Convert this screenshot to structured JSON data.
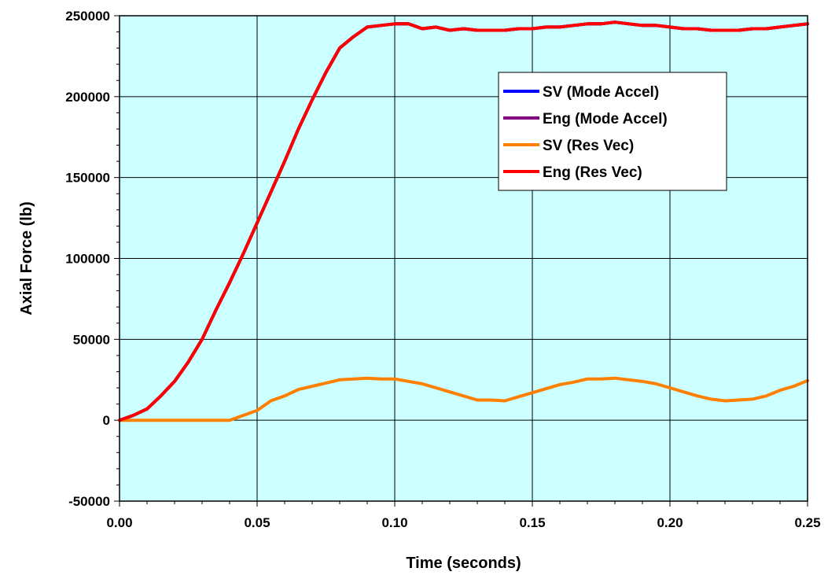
{
  "colors": {
    "plot_background": "#ccffff",
    "grid": "#000000",
    "axis": "#000000"
  },
  "chart_data": {
    "type": "line",
    "title": "",
    "xlabel": "Time (seconds)",
    "ylabel": "Axial Force (lb)",
    "xlim": [
      0.0,
      0.25
    ],
    "ylim": [
      -50000,
      250000
    ],
    "x_ticks": [
      "0.00",
      "0.05",
      "0.10",
      "0.15",
      "0.20",
      "0.25"
    ],
    "x_tick_values": [
      0.0,
      0.05,
      0.1,
      0.15,
      0.2,
      0.25
    ],
    "y_ticks": [
      "-50000",
      "0",
      "50000",
      "100000",
      "150000",
      "200000",
      "250000"
    ],
    "y_tick_values": [
      -50000,
      0,
      50000,
      100000,
      150000,
      200000,
      250000
    ],
    "grid": true,
    "legend_position": "upper-right",
    "series": [
      {
        "name": "SV (Mode Accel)",
        "color": "#0000ff",
        "x": [
          0.0,
          0.005,
          0.01,
          0.015,
          0.02,
          0.025,
          0.03,
          0.035,
          0.04,
          0.045,
          0.05,
          0.055,
          0.06,
          0.065,
          0.07,
          0.075,
          0.08,
          0.085,
          0.09,
          0.095,
          0.1,
          0.105,
          0.11,
          0.115,
          0.12,
          0.125,
          0.13,
          0.135,
          0.14,
          0.145,
          0.15,
          0.155,
          0.16,
          0.165,
          0.17,
          0.175,
          0.18,
          0.185,
          0.19,
          0.195,
          0.2,
          0.205,
          0.21,
          0.215,
          0.22,
          0.225,
          0.23,
          0.235,
          0.24,
          0.245,
          0.25
        ],
        "y": [
          0,
          3000,
          7000,
          15000,
          24000,
          36000,
          50000,
          68000,
          85000,
          103000,
          122000,
          141000,
          160000,
          180000,
          198000,
          215000,
          230000,
          237000,
          243000,
          244000,
          245000,
          245000,
          242000,
          243000,
          241000,
          242000,
          241000,
          241000,
          241000,
          242000,
          242000,
          243000,
          243000,
          244000,
          245000,
          245000,
          246000,
          245000,
          244000,
          244000,
          243000,
          242000,
          242000,
          241000,
          241000,
          241000,
          242000,
          242000,
          243000,
          244000,
          245000
        ]
      },
      {
        "name": "Eng (Mode Accel)",
        "color": "#800080",
        "x": [
          0.0,
          0.005,
          0.01,
          0.015,
          0.02,
          0.025,
          0.03,
          0.035,
          0.04,
          0.045,
          0.05,
          0.055,
          0.06,
          0.065,
          0.07,
          0.075,
          0.08,
          0.085,
          0.09,
          0.095,
          0.1,
          0.105,
          0.11,
          0.115,
          0.12,
          0.125,
          0.13,
          0.135,
          0.14,
          0.145,
          0.15,
          0.155,
          0.16,
          0.165,
          0.17,
          0.175,
          0.18,
          0.185,
          0.19,
          0.195,
          0.2,
          0.205,
          0.21,
          0.215,
          0.22,
          0.225,
          0.23,
          0.235,
          0.24,
          0.245,
          0.25
        ],
        "y": [
          0,
          3000,
          7000,
          15000,
          24000,
          36000,
          50000,
          68000,
          85000,
          103000,
          122000,
          141000,
          160000,
          180000,
          198000,
          215000,
          230000,
          237000,
          243000,
          244000,
          245000,
          245000,
          242000,
          243000,
          241000,
          242000,
          241000,
          241000,
          241000,
          242000,
          242000,
          243000,
          243000,
          244000,
          245000,
          245000,
          246000,
          245000,
          244000,
          244000,
          243000,
          242000,
          242000,
          241000,
          241000,
          241000,
          242000,
          242000,
          243000,
          244000,
          245000
        ]
      },
      {
        "name": "SV (Res Vec)",
        "color": "#ff8000",
        "x": [
          0.0,
          0.005,
          0.01,
          0.015,
          0.02,
          0.025,
          0.03,
          0.035,
          0.04,
          0.045,
          0.05,
          0.055,
          0.06,
          0.065,
          0.07,
          0.075,
          0.08,
          0.085,
          0.09,
          0.095,
          0.1,
          0.105,
          0.11,
          0.115,
          0.12,
          0.125,
          0.13,
          0.135,
          0.14,
          0.145,
          0.15,
          0.155,
          0.16,
          0.165,
          0.17,
          0.175,
          0.18,
          0.185,
          0.19,
          0.195,
          0.2,
          0.205,
          0.21,
          0.215,
          0.22,
          0.225,
          0.23,
          0.235,
          0.24,
          0.245,
          0.25
        ],
        "y": [
          0,
          0,
          0,
          0,
          0,
          0,
          0,
          0,
          0,
          3000,
          6000,
          12000,
          15000,
          19000,
          21000,
          23000,
          25000,
          25500,
          26000,
          25500,
          25500,
          24000,
          22500,
          20000,
          17500,
          15000,
          12500,
          12500,
          12000,
          14500,
          17000,
          19500,
          22000,
          23500,
          25500,
          25500,
          26000,
          25000,
          24000,
          22500,
          20000,
          17500,
          15000,
          13000,
          12000,
          12500,
          13000,
          15000,
          18500,
          21000,
          24500
        ]
      },
      {
        "name": "Eng (Res Vec)",
        "color": "#ff0000",
        "x": [
          0.0,
          0.005,
          0.01,
          0.015,
          0.02,
          0.025,
          0.03,
          0.035,
          0.04,
          0.045,
          0.05,
          0.055,
          0.06,
          0.065,
          0.07,
          0.075,
          0.08,
          0.085,
          0.09,
          0.095,
          0.1,
          0.105,
          0.11,
          0.115,
          0.12,
          0.125,
          0.13,
          0.135,
          0.14,
          0.145,
          0.15,
          0.155,
          0.16,
          0.165,
          0.17,
          0.175,
          0.18,
          0.185,
          0.19,
          0.195,
          0.2,
          0.205,
          0.21,
          0.215,
          0.22,
          0.225,
          0.23,
          0.235,
          0.24,
          0.245,
          0.25
        ],
        "y": [
          0,
          3000,
          7000,
          15000,
          24000,
          36000,
          50000,
          68000,
          85000,
          103000,
          122000,
          141000,
          160000,
          180000,
          198000,
          215000,
          230000,
          237000,
          243000,
          244000,
          245000,
          245000,
          242000,
          243000,
          241000,
          242000,
          241000,
          241000,
          241000,
          242000,
          242000,
          243000,
          243000,
          244000,
          245000,
          245000,
          246000,
          245000,
          244000,
          244000,
          243000,
          242000,
          242000,
          241000,
          241000,
          241000,
          242000,
          242000,
          243000,
          244000,
          245000
        ]
      }
    ]
  }
}
